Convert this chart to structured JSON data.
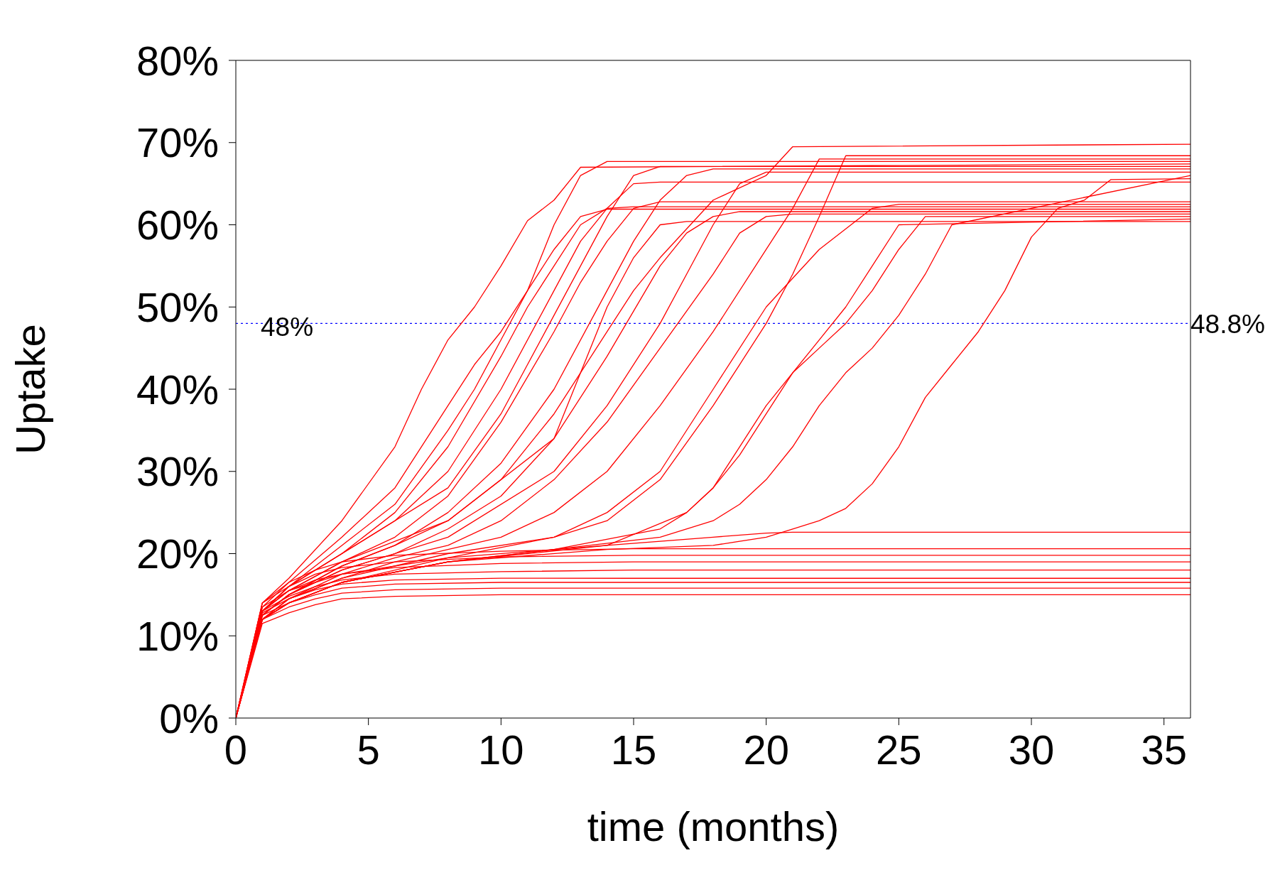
{
  "chart_data": {
    "type": "line",
    "xlabel": "time (months)",
    "ylabel": "Uptake",
    "xlim": [
      0,
      36
    ],
    "xticks": [
      0,
      5,
      10,
      15,
      20,
      25,
      30,
      35
    ],
    "ylim": [
      0,
      80
    ],
    "yticks": [
      {
        "value": 0,
        "label": "0%"
      },
      {
        "value": 10,
        "label": "10%"
      },
      {
        "value": 20,
        "label": "20%"
      },
      {
        "value": 30,
        "label": "30%"
      },
      {
        "value": 40,
        "label": "40%"
      },
      {
        "value": 50,
        "label": "50%"
      },
      {
        "value": 60,
        "label": "60%"
      },
      {
        "value": 70,
        "label": "70%"
      },
      {
        "value": 80,
        "label": "80%"
      }
    ],
    "grid": false,
    "marker": "none",
    "line_style": "solid",
    "ref_lines": [
      {
        "axis": "y",
        "value": 48,
        "label": "48%",
        "color": "#0000ff",
        "line_style": "dotted"
      }
    ],
    "annotations": [
      {
        "text": "48.8%",
        "x": 36,
        "y": 48
      }
    ],
    "series": [
      {
        "color": "#ff0000",
        "x": [
          0,
          1,
          2,
          3,
          4,
          6,
          10,
          15,
          36
        ],
        "values": [
          0,
          11.5,
          12.8,
          13.8,
          14.5,
          14.8,
          15,
          15,
          15
        ]
      },
      {
        "color": "#ff0000",
        "x": [
          0,
          1,
          2,
          3,
          4,
          6,
          10,
          15,
          36
        ],
        "values": [
          0,
          12,
          13.5,
          14.5,
          15.2,
          15.6,
          15.8,
          15.8,
          15.8
        ]
      },
      {
        "color": "#ff0000",
        "x": [
          0,
          1,
          2,
          3,
          4,
          6,
          10,
          15,
          36
        ],
        "values": [
          0,
          12.5,
          14,
          15,
          15.8,
          16.3,
          16.5,
          16.5,
          16.5
        ]
      },
      {
        "color": "#ff0000",
        "x": [
          0,
          1,
          2,
          3,
          4,
          6,
          10,
          15,
          36
        ],
        "values": [
          0,
          12.8,
          14.5,
          15.6,
          16.3,
          16.8,
          17,
          17,
          17
        ]
      },
      {
        "color": "#ff0000",
        "x": [
          0,
          1,
          2,
          3,
          4,
          6,
          10,
          15,
          36
        ],
        "values": [
          0,
          13,
          14.8,
          16,
          16.8,
          17.5,
          17.8,
          18,
          18
        ]
      },
      {
        "color": "#ff0000",
        "x": [
          0,
          1,
          2,
          3,
          4,
          6,
          10,
          15,
          36
        ],
        "values": [
          0,
          13.5,
          15.5,
          16.8,
          17.5,
          18.3,
          18.8,
          19,
          19
        ]
      },
      {
        "color": "#ff0000",
        "x": [
          0,
          1,
          2,
          3,
          4,
          6,
          10,
          15,
          36
        ],
        "values": [
          0,
          14,
          16,
          17.5,
          18.3,
          19,
          19.6,
          19.8,
          19.8
        ]
      },
      {
        "color": "#ff0000",
        "x": [
          0,
          1,
          2,
          3,
          4,
          6,
          10,
          15,
          36
        ],
        "values": [
          0,
          14,
          16.5,
          18,
          19,
          19.8,
          20.3,
          20.6,
          20.6
        ]
      },
      {
        "color": "#ff0000",
        "x": [
          0,
          1,
          2,
          4,
          8,
          14,
          18,
          20,
          21,
          36
        ],
        "values": [
          0,
          13,
          15.5,
          17.5,
          19.5,
          21,
          22,
          22.5,
          22.6,
          22.6
        ]
      },
      {
        "color": "#ff0000",
        "x": [
          0,
          1,
          2,
          4,
          6,
          7,
          8,
          9,
          10,
          11,
          12,
          13,
          36
        ],
        "values": [
          0,
          14,
          17,
          24,
          33,
          40,
          46,
          50,
          55,
          60.5,
          63,
          67,
          67.4
        ]
      },
      {
        "color": "#ff0000",
        "x": [
          0,
          1,
          2,
          4,
          6,
          8,
          9,
          10,
          11,
          12,
          13,
          14,
          36
        ],
        "values": [
          0,
          13.5,
          16.5,
          22,
          28,
          38,
          43,
          47,
          52,
          57,
          61,
          61.9,
          61.9
        ]
      },
      {
        "color": "#ff0000",
        "x": [
          0,
          1,
          2,
          4,
          6,
          8,
          10,
          11,
          12,
          13,
          14,
          15,
          36
        ],
        "values": [
          0,
          13,
          16,
          20,
          25,
          33,
          44,
          50,
          55,
          60,
          62,
          62.2,
          62.2
        ]
      },
      {
        "color": "#ff0000",
        "x": [
          0,
          1,
          2,
          4,
          6,
          8,
          10,
          12,
          13,
          14,
          15,
          16,
          36
        ],
        "values": [
          0,
          13,
          15.5,
          19,
          22,
          27,
          36,
          47,
          53,
          58,
          62,
          62.8,
          62.8
        ]
      },
      {
        "color": "#ff0000",
        "x": [
          0,
          1,
          2,
          4,
          6,
          8,
          10,
          12,
          14,
          15,
          16,
          17,
          18,
          36
        ],
        "values": [
          0,
          12.5,
          15,
          18.5,
          21,
          25,
          31,
          40,
          52,
          58,
          63,
          66,
          66.8,
          66.8
        ]
      },
      {
        "color": "#ff0000",
        "x": [
          0,
          1,
          2,
          4,
          6,
          8,
          10,
          12,
          14,
          16,
          17,
          18,
          19,
          36
        ],
        "values": [
          0,
          12.5,
          15,
          18,
          20,
          23,
          27,
          34,
          44,
          55,
          59,
          61,
          61.6,
          61.6
        ]
      },
      {
        "color": "#ff0000",
        "x": [
          0,
          1,
          2,
          4,
          6,
          8,
          10,
          12,
          14,
          16,
          18,
          19,
          20,
          21,
          36
        ],
        "values": [
          0,
          12,
          14.5,
          17.5,
          19.5,
          21,
          24,
          29,
          36,
          45,
          54,
          59,
          61,
          61.3,
          61.3
        ]
      },
      {
        "color": "#ff0000",
        "x": [
          0,
          1,
          2,
          4,
          6,
          8,
          10,
          12,
          14,
          16,
          18,
          20,
          21,
          22,
          36
        ],
        "values": [
          0,
          12,
          14.5,
          17,
          19,
          20.5,
          22,
          25,
          30,
          38,
          47,
          57,
          62,
          68,
          68
        ]
      },
      {
        "color": "#ff0000",
        "x": [
          0,
          1,
          2,
          4,
          8,
          12,
          16,
          17,
          18,
          19,
          20,
          21,
          22,
          23,
          24,
          25,
          26,
          36
        ],
        "values": [
          0,
          12,
          14,
          16.5,
          19,
          20.5,
          23,
          25,
          28,
          32,
          37,
          42,
          45,
          48,
          52,
          57,
          61,
          61
        ]
      },
      {
        "color": "#ff0000",
        "x": [
          0,
          1,
          2,
          4,
          8,
          12,
          16,
          18,
          19,
          20,
          21,
          22,
          23,
          24,
          25,
          26,
          27,
          36
        ],
        "values": [
          0,
          12,
          14,
          16.5,
          19,
          20.5,
          22,
          24,
          26,
          29,
          33,
          38,
          42,
          45,
          49,
          54,
          60,
          66
        ]
      },
      {
        "color": "#ff0000",
        "x": [
          0,
          1,
          2,
          4,
          8,
          14,
          18,
          20,
          21,
          22,
          23,
          24,
          25,
          26,
          27,
          28,
          29,
          30,
          31,
          32,
          33,
          36
        ],
        "values": [
          0,
          12,
          14,
          16.5,
          19,
          20.5,
          21,
          22,
          23,
          24,
          25.5,
          28.5,
          33,
          39,
          43,
          47,
          52,
          58.5,
          62,
          63,
          65.5,
          65.6
        ]
      },
      {
        "color": "#ff0000",
        "x": [
          0,
          1,
          2,
          4,
          6,
          8,
          9,
          10,
          11,
          12,
          13,
          14,
          36
        ],
        "values": [
          0,
          13,
          16,
          21,
          26,
          35,
          40,
          46,
          52,
          60,
          66,
          67.7,
          67.7
        ]
      },
      {
        "color": "#ff0000",
        "x": [
          0,
          1,
          2,
          4,
          6,
          8,
          10,
          12,
          14,
          15,
          16,
          18,
          20,
          21,
          36
        ],
        "values": [
          0,
          12.5,
          15,
          18.5,
          21,
          24,
          29,
          37,
          47,
          52,
          56,
          63,
          66,
          69.5,
          69.8
        ]
      },
      {
        "color": "#ff0000",
        "x": [
          0,
          1,
          2,
          4,
          8,
          12,
          14,
          16,
          18,
          19,
          20,
          21,
          22,
          23,
          36
        ],
        "values": [
          0,
          12,
          14.5,
          17,
          20,
          22,
          24,
          29,
          38,
          43,
          48,
          54,
          61,
          68.4,
          68.4
        ]
      },
      {
        "color": "#ff0000",
        "x": [
          0,
          1,
          2,
          4,
          8,
          12,
          13,
          14,
          15,
          16,
          17,
          18,
          36
        ],
        "values": [
          0,
          13,
          15.5,
          19,
          24,
          34,
          42,
          50,
          56,
          60,
          60.4,
          60.4,
          60.4
        ]
      },
      {
        "color": "#ff0000",
        "x": [
          0,
          1,
          2,
          4,
          8,
          10,
          11,
          12,
          13,
          14,
          15,
          16,
          36
        ],
        "values": [
          0,
          13,
          16,
          20,
          28,
          37,
          43,
          49,
          55,
          61,
          66,
          67.1,
          67.1
        ]
      },
      {
        "color": "#ff0000",
        "x": [
          0,
          1,
          2,
          4,
          8,
          12,
          14,
          16,
          17,
          18,
          19,
          20,
          36
        ],
        "values": [
          0,
          12.5,
          15,
          18,
          22,
          30,
          38,
          48,
          54,
          60,
          65,
          66.4,
          66.4
        ]
      },
      {
        "color": "#ff0000",
        "x": [
          0,
          1,
          2,
          4,
          8,
          12,
          14,
          16,
          18,
          20,
          22,
          24,
          25,
          36
        ],
        "values": [
          0,
          12,
          14,
          16.5,
          19.5,
          22,
          25,
          30,
          40,
          50,
          57,
          62,
          62.5,
          62.5
        ]
      },
      {
        "color": "#ff0000",
        "x": [
          0,
          1,
          2,
          4,
          8,
          14,
          17,
          18,
          19,
          20,
          21,
          22,
          23,
          24,
          25,
          36
        ],
        "values": [
          0,
          12,
          14,
          16.5,
          19,
          21,
          25,
          28,
          33,
          38,
          42,
          46,
          50,
          55,
          60,
          60.7
        ]
      },
      {
        "color": "#ff0000",
        "x": [
          0,
          1,
          2,
          4,
          6,
          8,
          10,
          12,
          13,
          14,
          15,
          16,
          36
        ],
        "values": [
          0,
          13,
          16,
          20,
          24,
          30,
          40,
          52,
          58,
          62,
          65,
          65.2,
          65.2
        ]
      }
    ]
  }
}
